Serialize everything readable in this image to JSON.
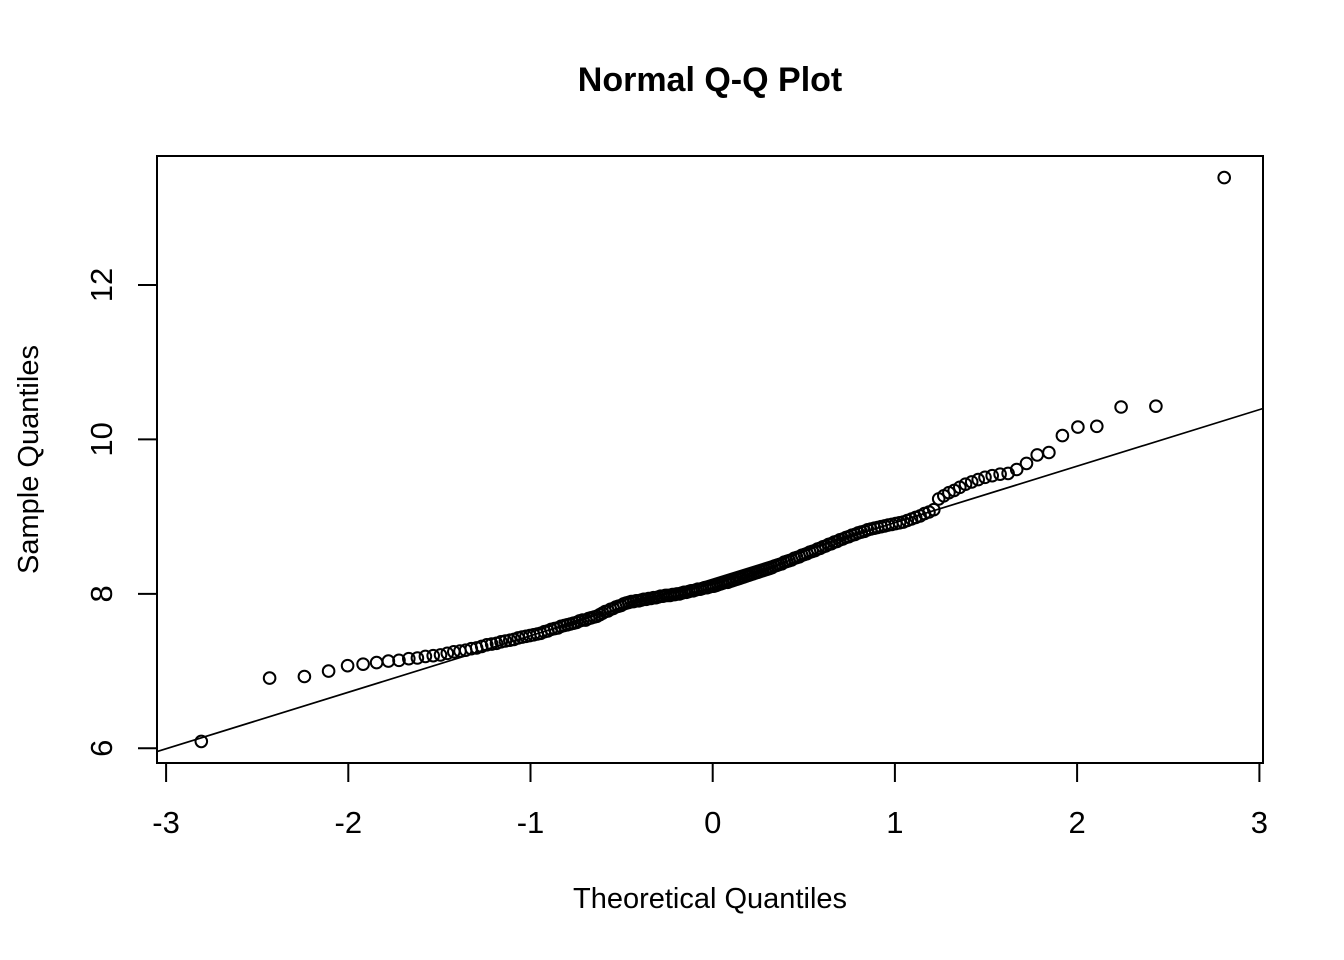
{
  "title": "Normal Q-Q Plot",
  "colors": {
    "foreground": "#000000",
    "background": "#ffffff"
  },
  "chart_data": {
    "type": "scatter",
    "title": "Normal Q-Q Plot",
    "xlabel": "Theoretical Quantiles",
    "ylabel": "Sample Quantiles",
    "xlim": [
      -3.05,
      3.02
    ],
    "ylim": [
      5.81,
      13.67
    ],
    "x_ticks": [
      -3,
      -2,
      -1,
      0,
      1,
      2,
      3
    ],
    "y_ticks": [
      6,
      8,
      10,
      12
    ],
    "grid": false,
    "legend": null,
    "marker": "open-circle",
    "n_points": 200,
    "reference_line": {
      "slope": 0.732,
      "intercept": 8.19
    },
    "points": [
      [
        -2.807,
        6.09
      ],
      [
        -2.432,
        6.91
      ],
      [
        -2.241,
        6.93
      ],
      [
        -2.108,
        7.0
      ],
      [
        -2.004,
        7.07
      ],
      [
        -1.919,
        7.09
      ],
      [
        -1.845,
        7.11
      ],
      [
        -1.78,
        7.13
      ],
      [
        -1.722,
        7.14
      ],
      [
        -1.668,
        7.16
      ],
      [
        -1.621,
        7.17
      ],
      [
        -1.577,
        7.19
      ],
      [
        -1.534,
        7.2
      ],
      [
        -1.494,
        7.21
      ],
      [
        -1.457,
        7.23
      ],
      [
        -1.421,
        7.25
      ],
      [
        -1.387,
        7.26
      ],
      [
        -1.356,
        7.27
      ],
      [
        -1.325,
        7.29
      ],
      [
        -1.296,
        7.3
      ],
      [
        -1.268,
        7.32
      ],
      [
        -1.24,
        7.34
      ],
      [
        -1.213,
        7.35
      ],
      [
        -1.187,
        7.36
      ],
      [
        -1.162,
        7.38
      ],
      [
        -1.138,
        7.39
      ],
      [
        -1.114,
        7.4
      ],
      [
        -1.091,
        7.41
      ],
      [
        -1.068,
        7.43
      ],
      [
        -1.046,
        7.44
      ],
      [
        -1.025,
        7.45
      ],
      [
        -1.004,
        7.46
      ],
      [
        -0.983,
        7.47
      ],
      [
        -0.963,
        7.48
      ],
      [
        -0.944,
        7.49
      ],
      [
        -0.924,
        7.51
      ],
      [
        -0.905,
        7.52
      ],
      [
        -0.887,
        7.54
      ],
      [
        -0.868,
        7.55
      ],
      [
        -0.85,
        7.56
      ],
      [
        -0.833,
        7.58
      ],
      [
        -0.815,
        7.59
      ],
      [
        -0.798,
        7.6
      ],
      [
        -0.781,
        7.61
      ],
      [
        -0.764,
        7.62
      ],
      [
        -0.747,
        7.63
      ],
      [
        -0.731,
        7.65
      ],
      [
        -0.714,
        7.66
      ],
      [
        -0.698,
        7.66
      ],
      [
        -0.682,
        7.68
      ],
      [
        -0.667,
        7.69
      ],
      [
        -0.651,
        7.7
      ],
      [
        -0.636,
        7.71
      ],
      [
        -0.62,
        7.73
      ],
      [
        -0.605,
        7.75
      ],
      [
        -0.59,
        7.77
      ],
      [
        -0.575,
        7.78
      ],
      [
        -0.561,
        7.8
      ],
      [
        -0.546,
        7.81
      ],
      [
        -0.532,
        7.83
      ],
      [
        -0.517,
        7.84
      ],
      [
        -0.503,
        7.85
      ],
      [
        -0.489,
        7.87
      ],
      [
        -0.475,
        7.88
      ],
      [
        -0.461,
        7.89
      ],
      [
        -0.447,
        7.9
      ],
      [
        -0.433,
        7.9
      ],
      [
        -0.419,
        7.91
      ],
      [
        -0.406,
        7.91
      ],
      [
        -0.392,
        7.92
      ],
      [
        -0.379,
        7.93
      ],
      [
        -0.365,
        7.93
      ],
      [
        -0.352,
        7.94
      ],
      [
        -0.339,
        7.94
      ],
      [
        -0.325,
        7.95
      ],
      [
        -0.312,
        7.95
      ],
      [
        -0.299,
        7.96
      ],
      [
        -0.286,
        7.97
      ],
      [
        -0.273,
        7.97
      ],
      [
        -0.26,
        7.98
      ],
      [
        -0.247,
        7.98
      ],
      [
        -0.234,
        7.98
      ],
      [
        -0.221,
        7.99
      ],
      [
        -0.208,
        7.99
      ],
      [
        -0.196,
        8.0
      ],
      [
        -0.183,
        8.0
      ],
      [
        -0.17,
        8.01
      ],
      [
        -0.157,
        8.02
      ],
      [
        -0.145,
        8.02
      ],
      [
        -0.132,
        8.03
      ],
      [
        -0.119,
        8.04
      ],
      [
        -0.107,
        8.04
      ],
      [
        -0.094,
        8.05
      ],
      [
        -0.082,
        8.06
      ],
      [
        -0.069,
        8.06
      ],
      [
        -0.056,
        8.07
      ],
      [
        -0.044,
        8.08
      ],
      [
        -0.031,
        8.08
      ],
      [
        -0.019,
        8.09
      ],
      [
        -0.006,
        8.1
      ],
      [
        0.006,
        8.1
      ],
      [
        0.019,
        8.11
      ],
      [
        0.031,
        8.12
      ],
      [
        0.044,
        8.13
      ],
      [
        0.056,
        8.14
      ],
      [
        0.069,
        8.15
      ],
      [
        0.082,
        8.15
      ],
      [
        0.094,
        8.16
      ],
      [
        0.107,
        8.17
      ],
      [
        0.119,
        8.18
      ],
      [
        0.132,
        8.19
      ],
      [
        0.145,
        8.2
      ],
      [
        0.157,
        8.21
      ],
      [
        0.17,
        8.22
      ],
      [
        0.183,
        8.23
      ],
      [
        0.196,
        8.24
      ],
      [
        0.208,
        8.25
      ],
      [
        0.221,
        8.26
      ],
      [
        0.234,
        8.27
      ],
      [
        0.247,
        8.28
      ],
      [
        0.26,
        8.29
      ],
      [
        0.273,
        8.3
      ],
      [
        0.286,
        8.31
      ],
      [
        0.299,
        8.32
      ],
      [
        0.312,
        8.33
      ],
      [
        0.325,
        8.34
      ],
      [
        0.339,
        8.36
      ],
      [
        0.352,
        8.37
      ],
      [
        0.365,
        8.38
      ],
      [
        0.379,
        8.39
      ],
      [
        0.392,
        8.41
      ],
      [
        0.406,
        8.42
      ],
      [
        0.419,
        8.43
      ],
      [
        0.433,
        8.44
      ],
      [
        0.447,
        8.46
      ],
      [
        0.461,
        8.47
      ],
      [
        0.475,
        8.48
      ],
      [
        0.489,
        8.5
      ],
      [
        0.503,
        8.51
      ],
      [
        0.517,
        8.52
      ],
      [
        0.532,
        8.54
      ],
      [
        0.546,
        8.55
      ],
      [
        0.561,
        8.56
      ],
      [
        0.575,
        8.58
      ],
      [
        0.59,
        8.59
      ],
      [
        0.605,
        8.61
      ],
      [
        0.62,
        8.62
      ],
      [
        0.636,
        8.64
      ],
      [
        0.651,
        8.65
      ],
      [
        0.667,
        8.67
      ],
      [
        0.682,
        8.68
      ],
      [
        0.698,
        8.7
      ],
      [
        0.714,
        8.71
      ],
      [
        0.731,
        8.73
      ],
      [
        0.747,
        8.74
      ],
      [
        0.764,
        8.76
      ],
      [
        0.781,
        8.77
      ],
      [
        0.798,
        8.79
      ],
      [
        0.815,
        8.8
      ],
      [
        0.833,
        8.81
      ],
      [
        0.85,
        8.83
      ],
      [
        0.868,
        8.84
      ],
      [
        0.887,
        8.85
      ],
      [
        0.905,
        8.86
      ],
      [
        0.924,
        8.87
      ],
      [
        0.944,
        8.88
      ],
      [
        0.963,
        8.89
      ],
      [
        0.983,
        8.9
      ],
      [
        1.004,
        8.91
      ],
      [
        1.025,
        8.92
      ],
      [
        1.046,
        8.93
      ],
      [
        1.068,
        8.95
      ],
      [
        1.091,
        8.97
      ],
      [
        1.114,
        8.99
      ],
      [
        1.138,
        9.01
      ],
      [
        1.162,
        9.04
      ],
      [
        1.187,
        9.06
      ],
      [
        1.213,
        9.09
      ],
      [
        1.24,
        9.23
      ],
      [
        1.268,
        9.27
      ],
      [
        1.296,
        9.31
      ],
      [
        1.325,
        9.34
      ],
      [
        1.356,
        9.38
      ],
      [
        1.387,
        9.42
      ],
      [
        1.421,
        9.45
      ],
      [
        1.457,
        9.48
      ],
      [
        1.494,
        9.51
      ],
      [
        1.534,
        9.53
      ],
      [
        1.577,
        9.55
      ],
      [
        1.621,
        9.56
      ],
      [
        1.668,
        9.61
      ],
      [
        1.722,
        9.69
      ],
      [
        1.781,
        9.8
      ],
      [
        1.845,
        9.83
      ],
      [
        1.919,
        10.05
      ],
      [
        2.004,
        10.16
      ],
      [
        2.108,
        10.17
      ],
      [
        2.241,
        10.42
      ],
      [
        2.432,
        10.43
      ],
      [
        2.807,
        13.39
      ]
    ]
  }
}
